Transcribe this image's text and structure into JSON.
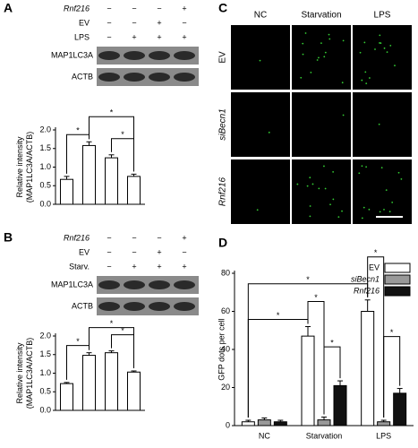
{
  "panels": [
    "A",
    "B",
    "C",
    "D"
  ],
  "blot_a": {
    "conditions": [
      {
        "label": "Rnf216",
        "marks": [
          "−",
          "−",
          "−",
          "+"
        ]
      },
      {
        "label": "EV",
        "marks": [
          "−",
          "−",
          "+",
          "−"
        ]
      },
      {
        "label": "LPS",
        "marks": [
          "−",
          "+",
          "+",
          "+"
        ]
      }
    ],
    "bands": [
      "MAP1LC3A",
      "ACTB"
    ]
  },
  "blot_b": {
    "conditions": [
      {
        "label": "Rnf216",
        "marks": [
          "−",
          "−",
          "−",
          "+"
        ]
      },
      {
        "label": "EV",
        "marks": [
          "−",
          "−",
          "+",
          "−"
        ]
      },
      {
        "label": "Starv.",
        "marks": [
          "−",
          "+",
          "+",
          "+"
        ]
      }
    ],
    "bands": [
      "MAP1LC3A",
      "ACTB"
    ]
  },
  "microscopy": {
    "columns": [
      "NC",
      "Starvation",
      "LPS"
    ],
    "rows": [
      "EV",
      "siBecn1",
      "Rnf216"
    ]
  },
  "chart_data": [
    {
      "type": "bar",
      "y_label": [
        "Relative intensity",
        "(MAP1LC3A/ACTB)"
      ],
      "categories": [
        null,
        null,
        null,
        null
      ],
      "values": [
        0.67,
        1.58,
        1.25,
        0.75
      ],
      "errors": [
        0.08,
        0.1,
        0.08,
        0.06
      ],
      "color": "#ffffff",
      "ylim": [
        0,
        2.0
      ],
      "yticks": [
        {
          "value": 0,
          "label": "0.0"
        },
        0.5,
        {
          "value": 1,
          "label": "1.0"
        },
        1.5,
        {
          "value": 2,
          "label": "2.0"
        }
      ],
      "significance": [
        {
          "text": "*",
          "from": 0,
          "to": 1
        },
        {
          "text": "*",
          "from": 2,
          "to": 3
        },
        {
          "text": "*",
          "from": 1,
          "to": 3
        }
      ]
    },
    {
      "type": "bar",
      "y_label": [
        "Relative intensity",
        "(MAP1LC3A/ACTB)"
      ],
      "categories": [
        null,
        null,
        null,
        null
      ],
      "values": [
        0.72,
        1.48,
        1.55,
        1.03
      ],
      "errors": [
        0.03,
        0.07,
        0.05,
        0.03
      ],
      "color": "#ffffff",
      "ylim": [
        0,
        2.0
      ],
      "yticks": [
        {
          "value": 0,
          "label": "0.0"
        },
        0.5,
        {
          "value": 1,
          "label": "1.0"
        },
        1.5,
        {
          "value": 2,
          "label": "2.0"
        }
      ],
      "significance": [
        {
          "text": "*",
          "from": 0,
          "to": 1
        },
        {
          "text": "*",
          "from": 2,
          "to": 3
        },
        {
          "text": "*",
          "from": 1,
          "to": 3
        }
      ]
    },
    {
      "type": "grouped_bar",
      "y_label": [
        "GFP dots per cell"
      ],
      "categories": [
        "NC",
        "Starvation",
        "LPS"
      ],
      "series": [
        {
          "name": "EV",
          "color": "#ffffff",
          "values": [
            2,
            47,
            60
          ],
          "errors": [
            0.8,
            5,
            6
          ]
        },
        {
          "name": "siBecn1",
          "color": "#999999",
          "values": [
            3,
            3,
            2
          ],
          "errors": [
            1,
            1.5,
            0.8
          ]
        },
        {
          "name": "Rnf216",
          "color": "#111111",
          "values": [
            2,
            21,
            17
          ],
          "errors": [
            0.8,
            2.5,
            2.5
          ]
        }
      ],
      "ylim": [
        0,
        80
      ],
      "yticks": [
        0,
        20,
        40,
        60,
        80
      ],
      "significance": [
        {
          "text": "*",
          "from": [
            0,
            0
          ],
          "to": [
            0,
            1
          ]
        },
        {
          "text": "*",
          "from": [
            0,
            0
          ],
          "to": [
            0,
            2
          ]
        },
        {
          "text": "*",
          "from": [
            0,
            1
          ],
          "to": [
            1,
            1
          ]
        },
        {
          "text": "*",
          "from": [
            1,
            1
          ],
          "to": [
            2,
            1
          ]
        },
        {
          "text": "*",
          "from": [
            0,
            2
          ],
          "to": [
            1,
            2
          ]
        },
        {
          "text": "*",
          "from": [
            1,
            2
          ],
          "to": [
            2,
            2
          ]
        }
      ]
    }
  ]
}
